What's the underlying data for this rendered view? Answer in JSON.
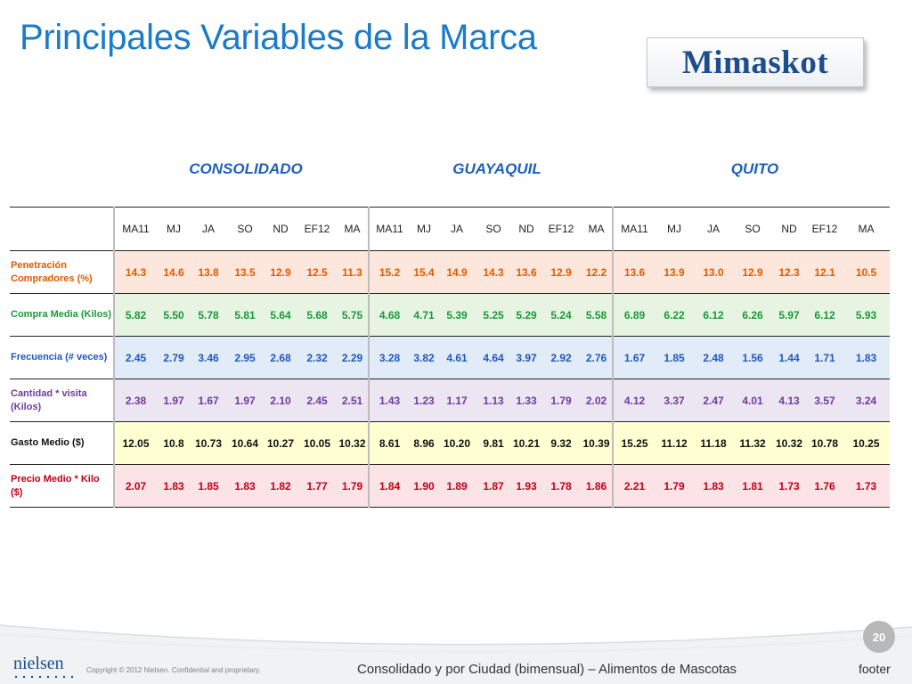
{
  "title": "Principales Variables de la Marca",
  "logo": {
    "brand": "Mimaskot"
  },
  "regions": [
    "CONSOLIDADO",
    "GUAYAQUIL",
    "QUITO"
  ],
  "periods": [
    "MA11",
    "MJ",
    "JA",
    "SO",
    "ND",
    "EF12",
    "MA",
    "MA11",
    "MJ",
    "JA",
    "SO",
    "ND",
    "EF12",
    "MA",
    "MA11",
    "MJ",
    "JA",
    "SO",
    "ND",
    "EF12",
    "MA"
  ],
  "rows": [
    {
      "label": "Penetración Compradores (%)",
      "label_color": "#e05a00",
      "value_color": "#e05a00",
      "bg": "#fde7dc",
      "values": [
        "14.3",
        "14.6",
        "13.8",
        "13.5",
        "12.9",
        "12.5",
        "11.3",
        "15.2",
        "15.4",
        "14.9",
        "14.3",
        "13.6",
        "12.9",
        "12.2",
        "13.6",
        "13.9",
        "13.0",
        "12.9",
        "12.3",
        "12.1",
        "10.5"
      ]
    },
    {
      "label": "Compra Media (Kilos)",
      "label_color": "#1a9a3a",
      "value_color": "#1a9a3a",
      "bg": "#e8f4e2",
      "values": [
        "5.82",
        "5.50",
        "5.78",
        "5.81",
        "5.64",
        "5.68",
        "5.75",
        "4.68",
        "4.71",
        "5.39",
        "5.25",
        "5.29",
        "5.24",
        "5.58",
        "6.89",
        "6.22",
        "6.12",
        "6.26",
        "5.97",
        "6.12",
        "5.93"
      ]
    },
    {
      "label": "Frecuencia (# veces)",
      "label_color": "#1f57c2",
      "value_color": "#1f57c2",
      "bg": "#e2ecf8",
      "values": [
        "2.45",
        "2.79",
        "3.46",
        "2.95",
        "2.68",
        "2.32",
        "2.29",
        "3.28",
        "3.82",
        "4.61",
        "4.64",
        "3.97",
        "2.92",
        "2.76",
        "1.67",
        "1.85",
        "2.48",
        "1.56",
        "1.44",
        "1.71",
        "1.83"
      ]
    },
    {
      "label": "Cantidad * visita (Kilos)",
      "label_color": "#6f3a9e",
      "value_color": "#6f3a9e",
      "bg": "#ece6f3",
      "values": [
        "2.38",
        "1.97",
        "1.67",
        "1.97",
        "2.10",
        "2.45",
        "2.51",
        "1.43",
        "1.23",
        "1.17",
        "1.13",
        "1.33",
        "1.79",
        "2.02",
        "4.12",
        "3.37",
        "2.47",
        "4.01",
        "4.13",
        "3.57",
        "3.24"
      ]
    },
    {
      "label": "Gasto Medio ($)",
      "label_color": "#111111",
      "value_color": "#111111",
      "bg": "#ffffd2",
      "values": [
        "12.05",
        "10.8",
        "10.73",
        "10.64",
        "10.27",
        "10.05",
        "10.32",
        "8.61",
        "8.96",
        "10.20",
        "9.81",
        "10.21",
        "9.32",
        "10.39",
        "15.25",
        "11.12",
        "11.18",
        "11.32",
        "10.32",
        "10.78",
        "10.25"
      ]
    },
    {
      "label": "Precio Medio * Kilo ($)",
      "label_color": "#c0001a",
      "value_color": "#c0001a",
      "bg": "#fbe3e6",
      "values": [
        "2.07",
        "1.83",
        "1.85",
        "1.83",
        "1.82",
        "1.77",
        "1.79",
        "1.84",
        "1.90",
        "1.89",
        "1.87",
        "1.93",
        "1.78",
        "1.86",
        "2.21",
        "1.79",
        "1.83",
        "1.81",
        "1.73",
        "1.76",
        "1.73"
      ]
    }
  ],
  "footer": {
    "page_number": "20",
    "nielsen": "nielsen",
    "copyright": "Copyright © 2012 Nielsen. Confidential and proprietary.",
    "caption": "Consolidado y por Ciudad (bimensual) – Alimentos de Mascotas",
    "footer_label": "footer"
  }
}
